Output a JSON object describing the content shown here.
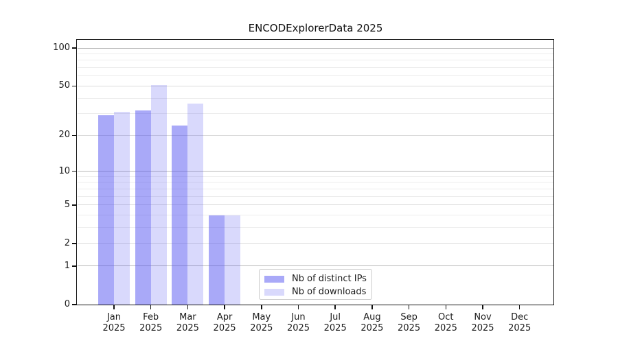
{
  "title": "ENCODExplorerData 2025",
  "colors": {
    "axis": "#111111",
    "text": "#1a1a1a",
    "background": "#ffffff",
    "bar_distinct_ips": "rgba(80,80,240,0.49)",
    "bar_downloads": "rgba(80,80,240,0.217)",
    "legend_swatch_distinct_ips": "#a9a9f8",
    "legend_swatch_downloads": "#d9d9fc",
    "legend_border": "#cbcbcb"
  },
  "chart_data": {
    "type": "bar",
    "title": "ENCODExplorerData 2025",
    "xlabel": "",
    "ylabel": "",
    "yscale": "log1p",
    "ylim": [
      0,
      116
    ],
    "grid": true,
    "legend_position": "bottom-center",
    "year": "2025",
    "months": [
      "Jan",
      "Feb",
      "Mar",
      "Apr",
      "May",
      "Jun",
      "Jul",
      "Aug",
      "Sep",
      "Oct",
      "Nov",
      "Dec"
    ],
    "yticks": [
      0,
      1,
      2,
      5,
      10,
      20,
      50,
      100
    ],
    "grid_levels": {
      "major": [
        1,
        10,
        100
      ],
      "mid": [
        2,
        5,
        20,
        50
      ],
      "minor": [
        3,
        4,
        6,
        7,
        8,
        9,
        30,
        40,
        60,
        70,
        80,
        90
      ]
    },
    "grid_colors": {
      "major": "#b6b6b6",
      "mid": "#dadada",
      "minor": "#ececec"
    },
    "series": [
      {
        "name": "Nb of distinct IPs",
        "color": "rgba(80,80,240,0.49)",
        "legend_color": "#a9a9f8",
        "values": [
          29,
          32,
          24,
          4,
          0,
          0,
          0,
          0,
          0,
          0,
          0,
          0
        ]
      },
      {
        "name": "Nb of downloads",
        "color": "rgba(80,80,240,0.217)",
        "legend_color": "#d9d9fc",
        "values": [
          31,
          51,
          36,
          4,
          0,
          0,
          0,
          0,
          0,
          0,
          0,
          0
        ]
      }
    ]
  }
}
